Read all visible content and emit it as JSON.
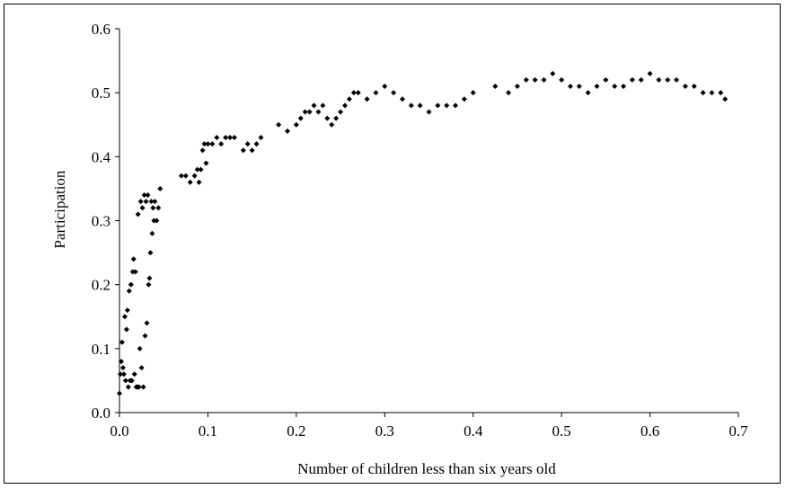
{
  "chart_data": {
    "type": "scatter",
    "title": "",
    "xlabel": "Number of children less than six years old",
    "ylabel": "Participation",
    "xlim": [
      0.0,
      0.7
    ],
    "ylim": [
      0.0,
      0.6
    ],
    "x_ticks": [
      "0.0",
      "0.1",
      "0.2",
      "0.3",
      "0.4",
      "0.5",
      "0.6",
      "0.7"
    ],
    "y_ticks": [
      "0.0",
      "0.1",
      "0.2",
      "0.3",
      "0.4",
      "0.5",
      "0.6"
    ],
    "grid": false,
    "legend": "none",
    "marker": "diamond",
    "marker_color": "#000000",
    "series": [
      {
        "points": [
          [
            0.0,
            0.03
          ],
          [
            0.001,
            0.06
          ],
          [
            0.002,
            0.08
          ],
          [
            0.003,
            0.11
          ],
          [
            0.004,
            0.07
          ],
          [
            0.005,
            0.06
          ],
          [
            0.006,
            0.15
          ],
          [
            0.007,
            0.05
          ],
          [
            0.008,
            0.13
          ],
          [
            0.009,
            0.16
          ],
          [
            0.01,
            0.04
          ],
          [
            0.011,
            0.19
          ],
          [
            0.012,
            0.05
          ],
          [
            0.013,
            0.2
          ],
          [
            0.014,
            0.05
          ],
          [
            0.015,
            0.22
          ],
          [
            0.016,
            0.24
          ],
          [
            0.017,
            0.06
          ],
          [
            0.018,
            0.22
          ],
          [
            0.019,
            0.04
          ],
          [
            0.02,
            0.04
          ],
          [
            0.021,
            0.31
          ],
          [
            0.022,
            0.04
          ],
          [
            0.023,
            0.1
          ],
          [
            0.024,
            0.33
          ],
          [
            0.025,
            0.07
          ],
          [
            0.026,
            0.32
          ],
          [
            0.027,
            0.04
          ],
          [
            0.028,
            0.34
          ],
          [
            0.029,
            0.12
          ],
          [
            0.03,
            0.33
          ],
          [
            0.031,
            0.14
          ],
          [
            0.032,
            0.34
          ],
          [
            0.033,
            0.2
          ],
          [
            0.034,
            0.21
          ],
          [
            0.035,
            0.25
          ],
          [
            0.036,
            0.33
          ],
          [
            0.037,
            0.28
          ],
          [
            0.038,
            0.32
          ],
          [
            0.039,
            0.3
          ],
          [
            0.04,
            0.33
          ],
          [
            0.042,
            0.3
          ],
          [
            0.044,
            0.32
          ],
          [
            0.046,
            0.35
          ],
          [
            0.07,
            0.37
          ],
          [
            0.075,
            0.37
          ],
          [
            0.08,
            0.36
          ],
          [
            0.085,
            0.37
          ],
          [
            0.088,
            0.38
          ],
          [
            0.09,
            0.36
          ],
          [
            0.092,
            0.38
          ],
          [
            0.094,
            0.41
          ],
          [
            0.096,
            0.42
          ],
          [
            0.098,
            0.39
          ],
          [
            0.1,
            0.42
          ],
          [
            0.105,
            0.42
          ],
          [
            0.11,
            0.43
          ],
          [
            0.115,
            0.42
          ],
          [
            0.12,
            0.43
          ],
          [
            0.125,
            0.43
          ],
          [
            0.13,
            0.43
          ],
          [
            0.14,
            0.41
          ],
          [
            0.145,
            0.42
          ],
          [
            0.15,
            0.41
          ],
          [
            0.155,
            0.42
          ],
          [
            0.16,
            0.43
          ],
          [
            0.18,
            0.45
          ],
          [
            0.19,
            0.44
          ],
          [
            0.2,
            0.45
          ],
          [
            0.205,
            0.46
          ],
          [
            0.21,
            0.47
          ],
          [
            0.215,
            0.47
          ],
          [
            0.22,
            0.48
          ],
          [
            0.225,
            0.47
          ],
          [
            0.23,
            0.48
          ],
          [
            0.235,
            0.46
          ],
          [
            0.24,
            0.45
          ],
          [
            0.245,
            0.46
          ],
          [
            0.25,
            0.47
          ],
          [
            0.255,
            0.48
          ],
          [
            0.26,
            0.49
          ],
          [
            0.265,
            0.5
          ],
          [
            0.27,
            0.5
          ],
          [
            0.28,
            0.49
          ],
          [
            0.29,
            0.5
          ],
          [
            0.3,
            0.51
          ],
          [
            0.31,
            0.5
          ],
          [
            0.32,
            0.49
          ],
          [
            0.33,
            0.48
          ],
          [
            0.34,
            0.48
          ],
          [
            0.35,
            0.47
          ],
          [
            0.36,
            0.48
          ],
          [
            0.37,
            0.48
          ],
          [
            0.38,
            0.48
          ],
          [
            0.39,
            0.49
          ],
          [
            0.4,
            0.5
          ],
          [
            0.425,
            0.51
          ],
          [
            0.44,
            0.5
          ],
          [
            0.45,
            0.51
          ],
          [
            0.46,
            0.52
          ],
          [
            0.47,
            0.52
          ],
          [
            0.48,
            0.52
          ],
          [
            0.49,
            0.53
          ],
          [
            0.5,
            0.52
          ],
          [
            0.51,
            0.51
          ],
          [
            0.52,
            0.51
          ],
          [
            0.53,
            0.5
          ],
          [
            0.54,
            0.51
          ],
          [
            0.55,
            0.52
          ],
          [
            0.56,
            0.51
          ],
          [
            0.57,
            0.51
          ],
          [
            0.58,
            0.52
          ],
          [
            0.59,
            0.52
          ],
          [
            0.6,
            0.53
          ],
          [
            0.61,
            0.52
          ],
          [
            0.62,
            0.52
          ],
          [
            0.63,
            0.52
          ],
          [
            0.64,
            0.51
          ],
          [
            0.65,
            0.51
          ],
          [
            0.66,
            0.5
          ],
          [
            0.67,
            0.5
          ],
          [
            0.68,
            0.5
          ],
          [
            0.685,
            0.49
          ]
        ]
      }
    ]
  }
}
